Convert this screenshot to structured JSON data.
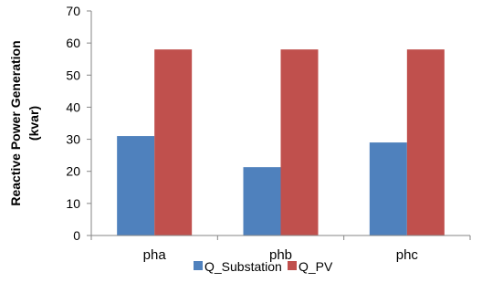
{
  "chart_data": {
    "type": "bar",
    "categories": [
      "pha",
      "phb",
      "phc"
    ],
    "series": [
      {
        "name": "Q_Substation",
        "values": [
          31,
          21.3,
          29
        ],
        "color": "#4F81BD"
      },
      {
        "name": "Q_PV",
        "values": [
          58,
          58,
          58
        ],
        "color": "#C0504D"
      }
    ],
    "title": "",
    "xlabel": "",
    "ylabel": [
      "Reactive Power Generation",
      "(kvar)"
    ],
    "ylim": [
      0,
      70
    ],
    "yticks": [
      "0",
      "10",
      "20",
      "30",
      "40",
      "50",
      "60",
      "70"
    ],
    "grid": false,
    "legend": "bottom-center"
  }
}
